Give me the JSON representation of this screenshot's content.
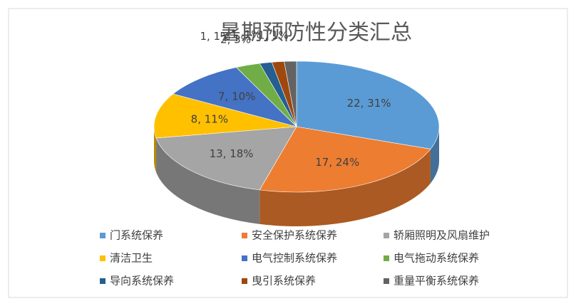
{
  "chart_data": {
    "type": "pie3d",
    "title": "暑期预防性分类汇总",
    "categories": [
      "门系统保养",
      "安全保护系统保养",
      "轿厢照明及风扇维护",
      "清洁卫生",
      "电气控制系统保养",
      "电气拖动系统保养",
      "导向系统保养",
      "曳引系统保养",
      "重量平衡系统保养"
    ],
    "values": [
      22,
      17,
      13,
      8,
      7,
      2,
      1,
      1,
      1
    ],
    "value_labels": [
      "22, 31%",
      "17, 24%",
      "13, 18%",
      "8, 11%",
      "7, 10%",
      "2, 3%",
      "1, 1%",
      "1, 1%",
      "1, 1%"
    ],
    "colors": [
      "#5b9bd5",
      "#ed7d31",
      "#a5a5a5",
      "#ffc000",
      "#4472c4",
      "#70ad47",
      "#255e91",
      "#9e480e",
      "#636363"
    ],
    "legend": "bottom"
  }
}
